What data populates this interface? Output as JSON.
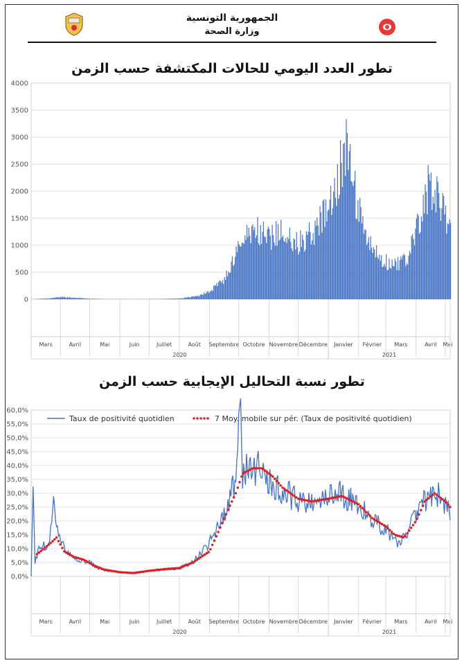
{
  "header": {
    "republic": "الجمهورية التونسية",
    "ministry": "وزارة الصحة"
  },
  "colors": {
    "bar": "#4472c4",
    "line": "#4472c4",
    "moving_avg": "#e02020",
    "grid": "#d9d9d9"
  },
  "chart_data": [
    {
      "type": "bar",
      "title": "تطور العدد اليومي للحالات المكتشفة حسب الزمن",
      "ylim": [
        0,
        4000
      ],
      "y_ticks": [
        "0",
        "500",
        "1000",
        "1500",
        "2000",
        "2500",
        "3000",
        "3500",
        "4000"
      ],
      "x_start": "2020-03-02",
      "x_end": "2021-05-06",
      "grid": "horizontal",
      "month_labels": [
        "Mars",
        "Avril",
        "Mai",
        "Juin",
        "Juillet",
        "Août",
        "Septembre",
        "Octobre",
        "Novembre",
        "Décembre",
        "Janvier",
        "Février",
        "Mars",
        "Avril",
        "Mai"
      ],
      "year_labels": [
        "2020",
        "2021"
      ],
      "series": [
        {
          "values_by_date": [
            [
              "2020-03-02",
              1
            ],
            [
              "2020-03-20",
              15
            ],
            [
              "2020-04-01",
              40
            ],
            [
              "2020-04-15",
              30
            ],
            [
              "2020-05-01",
              10
            ],
            [
              "2020-05-20",
              3
            ],
            [
              "2020-06-15",
              2
            ],
            [
              "2020-07-10",
              5
            ],
            [
              "2020-08-01",
              15
            ],
            [
              "2020-08-20",
              60
            ],
            [
              "2020-09-01",
              150
            ],
            [
              "2020-09-15",
              350
            ],
            [
              "2020-09-25",
              700
            ],
            [
              "2020-10-05",
              1100
            ],
            [
              "2020-10-15",
              1300
            ],
            [
              "2020-10-25",
              1200
            ],
            [
              "2020-11-05",
              1150
            ],
            [
              "2020-11-15",
              1300
            ],
            [
              "2020-11-25",
              1000
            ],
            [
              "2020-12-05",
              1100
            ],
            [
              "2020-12-15",
              1250
            ],
            [
              "2020-12-25",
              1450
            ],
            [
              "2021-01-05",
              1900
            ],
            [
              "2021-01-13",
              2500
            ],
            [
              "2021-01-18",
              2900
            ],
            [
              "2021-01-25",
              2300
            ],
            [
              "2021-02-01",
              1600
            ],
            [
              "2021-02-10",
              1050
            ],
            [
              "2021-02-20",
              800
            ],
            [
              "2021-03-01",
              700
            ],
            [
              "2021-03-10",
              650
            ],
            [
              "2021-03-20",
              700
            ],
            [
              "2021-03-28",
              1000
            ],
            [
              "2021-04-05",
              1500
            ],
            [
              "2021-04-13",
              2100
            ],
            [
              "2021-04-20",
              2000
            ],
            [
              "2021-04-28",
              1700
            ],
            [
              "2021-05-06",
              1200
            ]
          ]
        }
      ]
    },
    {
      "type": "line",
      "title": "تطور نسبة التحاليل الإيجابية حسب الزمن",
      "ylim": [
        0,
        60
      ],
      "y_ticks": [
        "0,0%",
        "5,0%",
        "10,0%",
        "15,0%",
        "20,0%",
        "25,0%",
        "30,0%",
        "35,0%",
        "40,0%",
        "45,0%",
        "50,0%",
        "55,0%",
        "60,0%"
      ],
      "x_start": "2020-03-02",
      "x_end": "2021-05-06",
      "grid": "horizontal",
      "legend_position": "top",
      "month_labels": [
        "Mars",
        "Avril",
        "Mai",
        "Juin",
        "Juillet",
        "Août",
        "Septembre",
        "Octobre",
        "Novembre",
        "Décembre",
        "Janvier",
        "Février",
        "Mars",
        "Avril",
        "Mai"
      ],
      "year_labels": [
        "2020",
        "2021"
      ],
      "series": [
        {
          "name": "Taux de positivité quotidien",
          "values_by_date": [
            [
              "2020-03-02",
              0
            ],
            [
              "2020-03-04",
              37
            ],
            [
              "2020-03-06",
              5
            ],
            [
              "2020-03-10",
              10
            ],
            [
              "2020-03-20",
              12
            ],
            [
              "2020-03-25",
              26
            ],
            [
              "2020-04-01",
              13
            ],
            [
              "2020-04-10",
              8
            ],
            [
              "2020-04-20",
              6
            ],
            [
              "2020-05-01",
              5
            ],
            [
              "2020-05-10",
              3
            ],
            [
              "2020-05-20",
              2
            ],
            [
              "2020-06-01",
              1.5
            ],
            [
              "2020-06-15",
              1
            ],
            [
              "2020-07-01",
              2
            ],
            [
              "2020-07-15",
              2.5
            ],
            [
              "2020-08-01",
              3
            ],
            [
              "2020-08-15",
              5
            ],
            [
              "2020-09-01",
              12
            ],
            [
              "2020-09-10",
              18
            ],
            [
              "2020-09-20",
              25
            ],
            [
              "2020-09-28",
              35
            ],
            [
              "2020-10-01",
              50
            ],
            [
              "2020-10-03",
              59
            ],
            [
              "2020-10-05",
              38
            ],
            [
              "2020-10-10",
              40
            ],
            [
              "2020-10-20",
              39
            ],
            [
              "2020-11-01",
              35
            ],
            [
              "2020-11-15",
              31
            ],
            [
              "2020-12-01",
              27
            ],
            [
              "2020-12-15",
              26
            ],
            [
              "2021-01-01",
              29
            ],
            [
              "2021-01-15",
              30
            ],
            [
              "2021-02-01",
              26
            ],
            [
              "2021-02-15",
              20
            ],
            [
              "2021-03-01",
              17
            ],
            [
              "2021-03-10",
              12
            ],
            [
              "2021-03-20",
              14
            ],
            [
              "2021-04-01",
              22
            ],
            [
              "2021-04-10",
              28
            ],
            [
              "2021-04-20",
              30
            ],
            [
              "2021-05-01",
              27
            ],
            [
              "2021-05-06",
              23
            ]
          ]
        },
        {
          "name": "7 Moy. mobile sur pér. (Taux de positivité quotidien)",
          "values_by_date": [
            [
              "2020-03-08",
              8
            ],
            [
              "2020-03-15",
              10
            ],
            [
              "2020-03-22",
              12
            ],
            [
              "2020-03-28",
              14
            ],
            [
              "2020-04-05",
              9
            ],
            [
              "2020-04-15",
              7
            ],
            [
              "2020-04-25",
              6
            ],
            [
              "2020-05-05",
              4
            ],
            [
              "2020-05-15",
              2.5
            ],
            [
              "2020-06-01",
              1.5
            ],
            [
              "2020-06-15",
              1.2
            ],
            [
              "2020-07-01",
              2
            ],
            [
              "2020-07-15",
              2.5
            ],
            [
              "2020-08-01",
              3
            ],
            [
              "2020-08-15",
              5
            ],
            [
              "2020-09-01",
              9
            ],
            [
              "2020-09-10",
              16
            ],
            [
              "2020-09-20",
              24
            ],
            [
              "2020-09-28",
              30
            ],
            [
              "2020-10-05",
              37
            ],
            [
              "2020-10-15",
              39
            ],
            [
              "2020-10-25",
              39
            ],
            [
              "2020-11-05",
              36
            ],
            [
              "2020-11-15",
              32
            ],
            [
              "2020-12-01",
              28
            ],
            [
              "2020-12-15",
              27
            ],
            [
              "2021-01-01",
              28
            ],
            [
              "2021-01-15",
              29
            ],
            [
              "2021-02-01",
              26
            ],
            [
              "2021-02-15",
              21
            ],
            [
              "2021-03-01",
              18
            ],
            [
              "2021-03-10",
              15
            ],
            [
              "2021-03-20",
              14
            ],
            [
              "2021-04-01",
              20
            ],
            [
              "2021-04-10",
              27
            ],
            [
              "2021-04-20",
              30
            ],
            [
              "2021-05-01",
              27
            ],
            [
              "2021-05-06",
              25
            ]
          ]
        }
      ]
    }
  ]
}
